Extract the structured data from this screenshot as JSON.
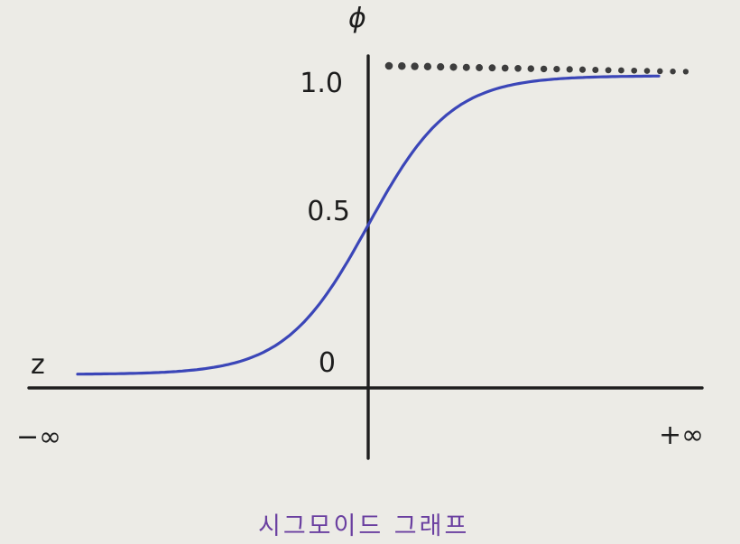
{
  "chart_data": {
    "type": "line",
    "title": "",
    "caption": "시그모이드 그래프",
    "ylabel": "ϕ",
    "xlabel": "z",
    "x_tick_labels": {
      "left": "−∞",
      "right": "+∞"
    },
    "y_ticks": [
      {
        "value": 0,
        "label": "0"
      },
      {
        "value": 0.5,
        "label": "0.5"
      },
      {
        "value": 1.0,
        "label": "1.0"
      }
    ],
    "xlim": [
      -7,
      7
    ],
    "ylim": [
      0,
      1
    ],
    "grid": false,
    "series": [
      {
        "function": "sigmoid",
        "color": "#3b46b8",
        "x_range": [
          -7,
          7
        ]
      }
    ],
    "reference_lines": [
      {
        "y": 1.0,
        "style": "dotted",
        "color": "#3d3d3d"
      }
    ]
  },
  "colors": {
    "axis": "#1e1e1e",
    "curve": "#3b46b8",
    "caption": "#6a3fa0",
    "background": "#ecebe6"
  }
}
